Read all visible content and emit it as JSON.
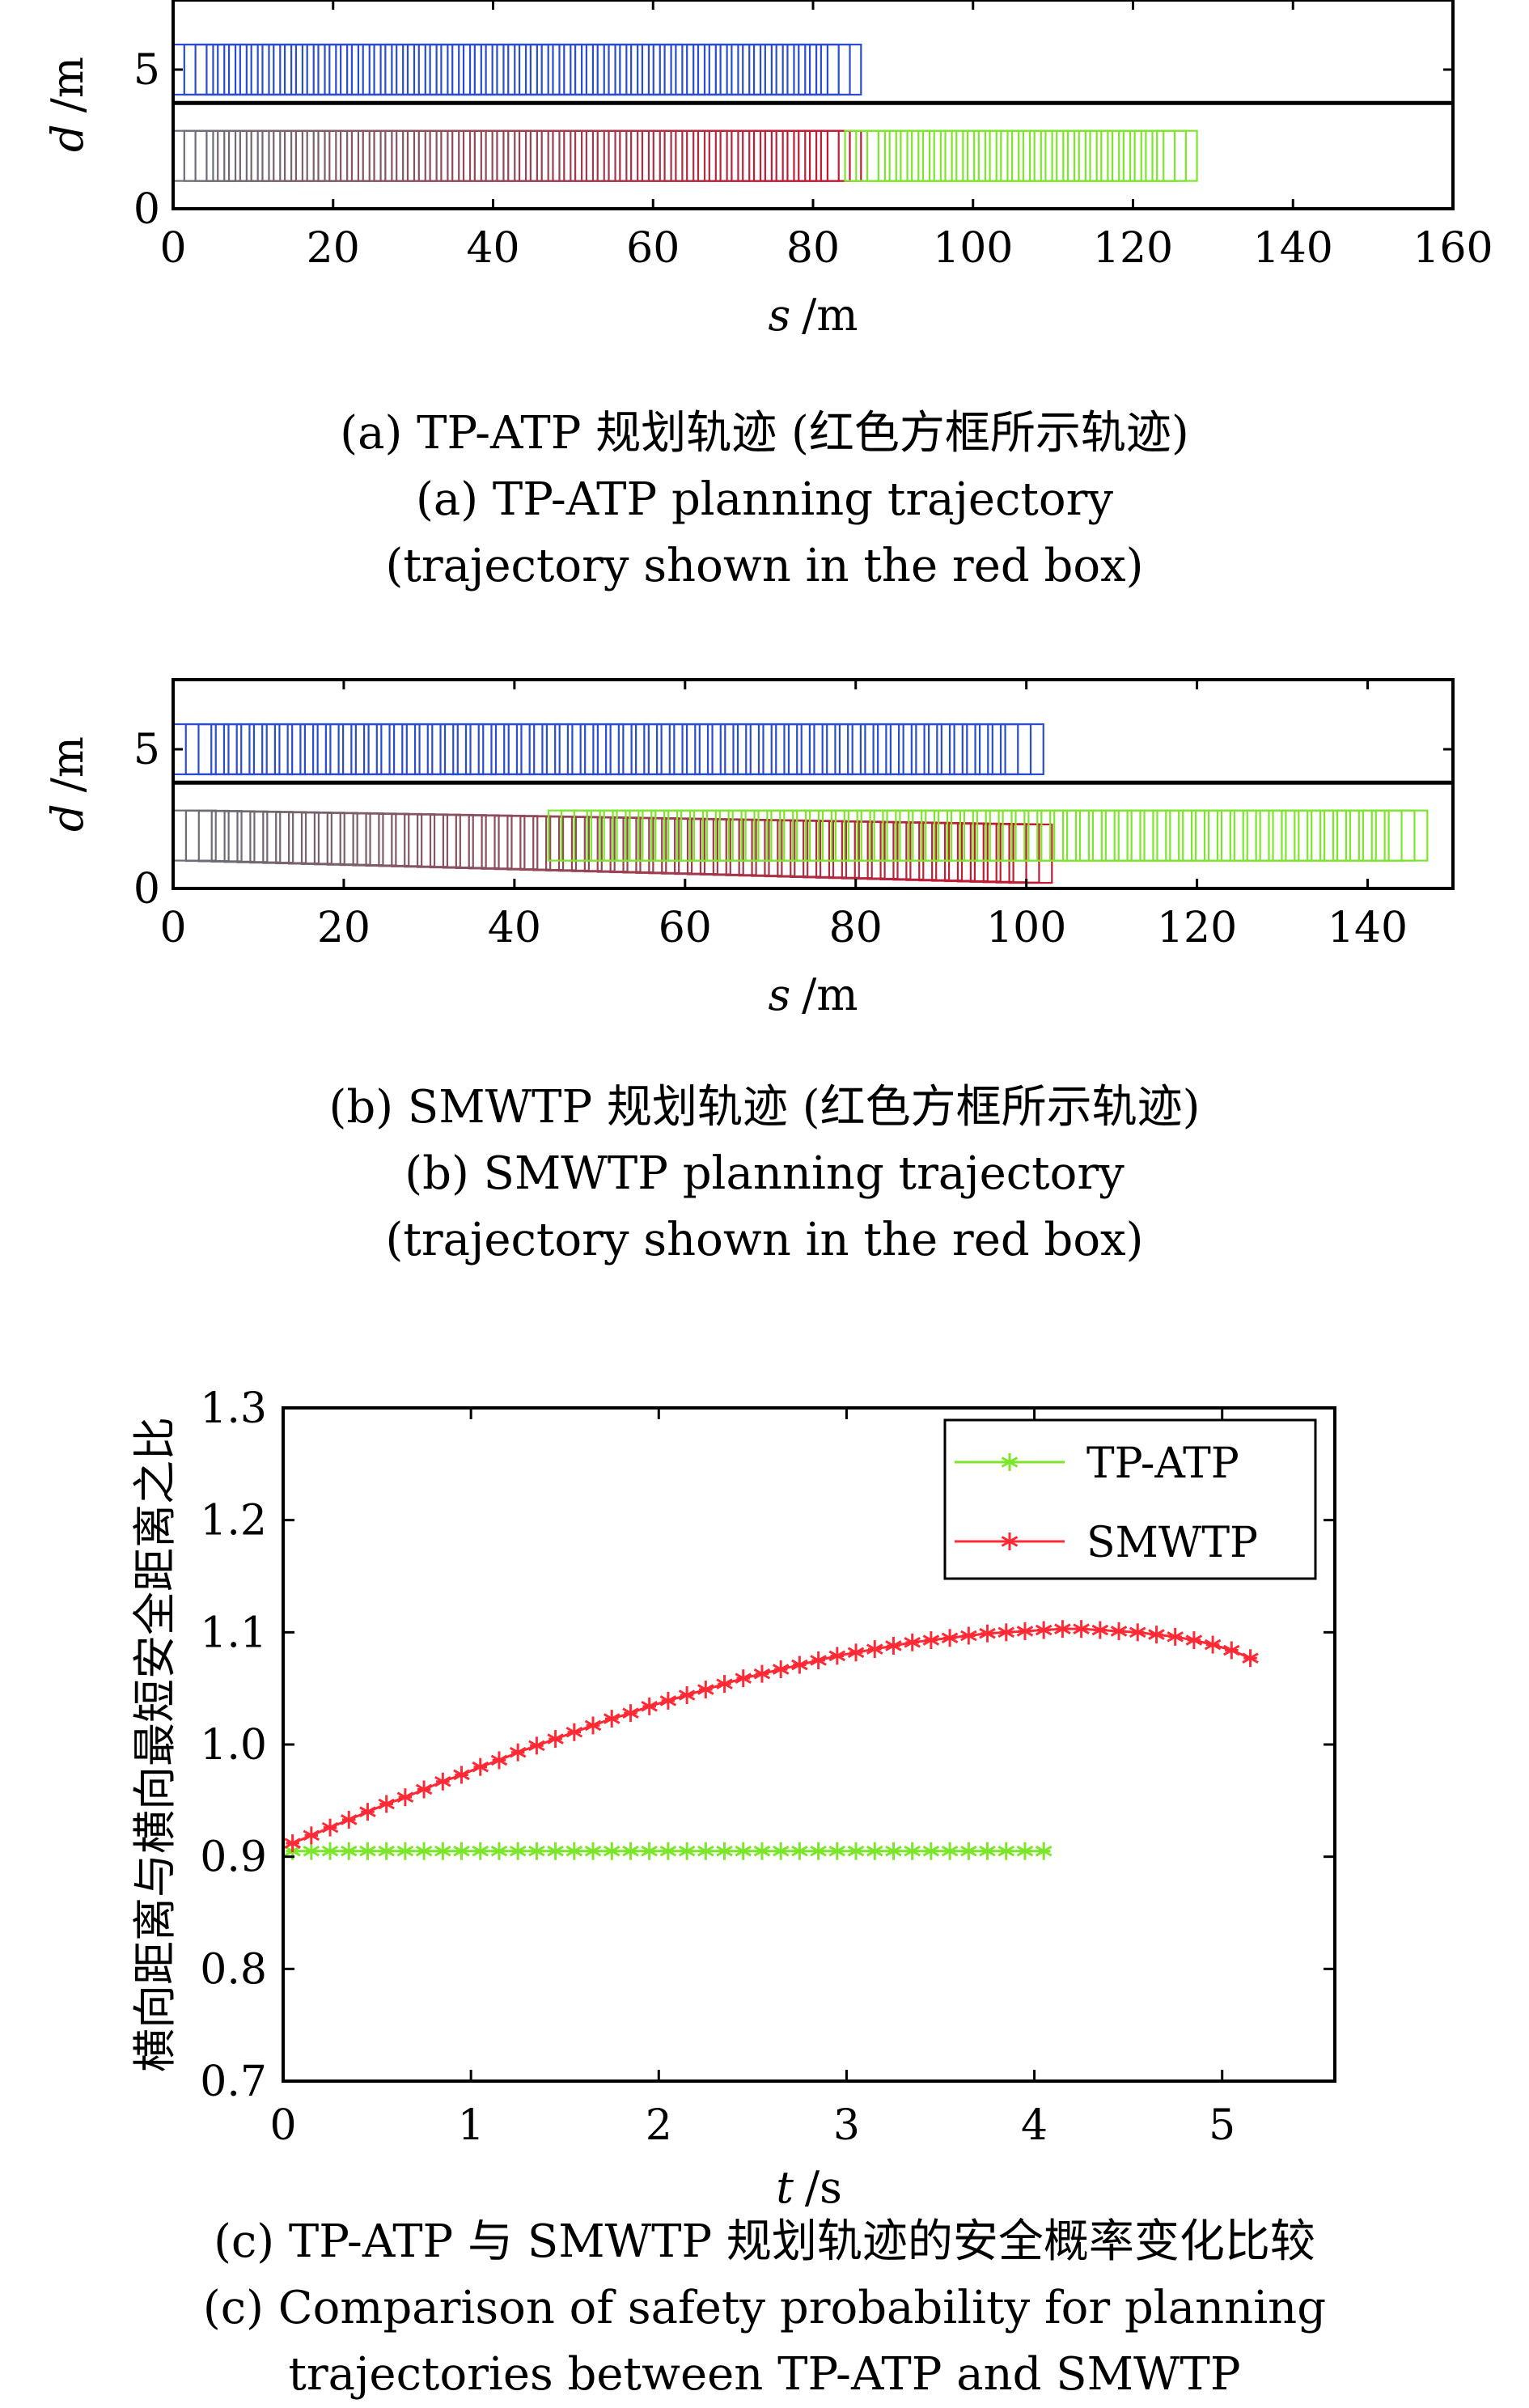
{
  "colors": {
    "lane_top": "#2a4ccf",
    "tp_atp": "#7be62a",
    "smwtp": "#ff2a35",
    "red_box": "#c21a32",
    "trail_start": "#6b6f78"
  },
  "chart_data": [
    {
      "id": "a",
      "type": "trajectory-boxes",
      "xlabel_var": "s",
      "xlabel_unit": "/m",
      "ylabel_var": "d",
      "ylabel_unit": "/m",
      "xlim": [
        0,
        160
      ],
      "ylim": [
        0,
        7.5
      ],
      "xticks": [
        0,
        20,
        40,
        60,
        80,
        100,
        120,
        140,
        160
      ],
      "yticks": [
        0,
        5
      ],
      "lane_divider_d": 3.8,
      "groups": [
        {
          "role": "upper-lane vehicle",
          "color_key": "lane_top",
          "s_start": 0,
          "s_end": 86,
          "d_low": 4.1,
          "d_high": 5.9,
          "box_length": 5,
          "spacing": 1.4
        },
        {
          "role": "planned trajectory (red box)",
          "color_key": "red_box",
          "s_start": 0,
          "s_end": 86,
          "d_low": 1.0,
          "d_high": 2.8,
          "box_length": 5,
          "spacing": 1.4
        },
        {
          "role": "lower-lane vehicle",
          "color_key": "tp_atp",
          "s_start": 84,
          "s_end": 128,
          "d_low": 1.0,
          "d_high": 2.8,
          "box_length": 5,
          "spacing": 1.4
        }
      ],
      "caption_lines": [
        "(a) TP-ATP 规划轨迹 (红色方框所示轨迹)",
        "(a) TP-ATP planning trajectory",
        "(trajectory shown in the red box)"
      ]
    },
    {
      "id": "b",
      "type": "trajectory-boxes",
      "xlabel_var": "s",
      "xlabel_unit": "/m",
      "ylabel_var": "d",
      "ylabel_unit": "/m",
      "xlim": [
        0,
        150
      ],
      "ylim": [
        0,
        7.5
      ],
      "xticks": [
        0,
        20,
        40,
        60,
        80,
        100,
        120,
        140
      ],
      "yticks": [
        0,
        5
      ],
      "lane_divider_d": 3.8,
      "groups": [
        {
          "role": "upper-lane vehicle",
          "color_key": "lane_top",
          "s_start": 0,
          "s_end": 102,
          "d_low": 4.1,
          "d_high": 5.9,
          "box_length": 5,
          "spacing": 1.5
        },
        {
          "role": "planned trajectory (red box)",
          "color_key": "red_box",
          "s_start": 0,
          "s_end": 103,
          "d_low": 1.0,
          "d_high": 2.8,
          "d_low_end": 0.2,
          "d_high_end": 2.3,
          "box_length": 5,
          "spacing": 1.5
        },
        {
          "role": "lower-lane vehicle",
          "color_key": "tp_atp",
          "s_start": 44,
          "s_end": 147,
          "d_low": 1.0,
          "d_high": 2.8,
          "box_length": 5,
          "spacing": 1.5
        }
      ],
      "caption_lines": [
        "(b) SMWTP 规划轨迹 (红色方框所示轨迹)",
        "(b) SMWTP planning trajectory",
        "(trajectory shown in the red box)"
      ]
    },
    {
      "id": "c",
      "type": "line",
      "xlabel_var": "t",
      "xlabel_unit": "/s",
      "ylabel": "横向距离与横向最短安全距离之比",
      "xlim": [
        0,
        5.6
      ],
      "ylim": [
        0.7,
        1.3
      ],
      "xticks": [
        0,
        1,
        2,
        3,
        4,
        5
      ],
      "yticks": [
        0.7,
        0.8,
        0.9,
        1.0,
        1.1,
        1.2,
        1.3
      ],
      "ytick_labels": [
        "0.7",
        "0.8",
        "0.9",
        "1.0",
        "1.1",
        "1.2",
        "1.3"
      ],
      "legend_position": "top-right",
      "series": [
        {
          "name": "TP-ATP",
          "color_key": "tp_atp",
          "marker": "*",
          "x": [
            0.05,
            0.15,
            0.25,
            0.35,
            0.45,
            0.55,
            0.65,
            0.75,
            0.85,
            0.95,
            1.05,
            1.15,
            1.25,
            1.35,
            1.45,
            1.55,
            1.65,
            1.75,
            1.85,
            1.95,
            2.05,
            2.15,
            2.25,
            2.35,
            2.45,
            2.55,
            2.65,
            2.75,
            2.85,
            2.95,
            3.05,
            3.15,
            3.25,
            3.35,
            3.45,
            3.55,
            3.65,
            3.75,
            3.85,
            3.95,
            4.05
          ],
          "y": [
            0.905,
            0.905,
            0.905,
            0.905,
            0.905,
            0.905,
            0.905,
            0.905,
            0.905,
            0.905,
            0.905,
            0.905,
            0.905,
            0.905,
            0.905,
            0.905,
            0.905,
            0.905,
            0.905,
            0.905,
            0.905,
            0.905,
            0.905,
            0.905,
            0.905,
            0.905,
            0.905,
            0.905,
            0.905,
            0.905,
            0.905,
            0.905,
            0.905,
            0.905,
            0.905,
            0.905,
            0.905,
            0.905,
            0.905,
            0.905,
            0.905
          ]
        },
        {
          "name": "SMWTP",
          "color_key": "smwtp",
          "marker": "*",
          "x": [
            0.05,
            0.15,
            0.25,
            0.35,
            0.45,
            0.55,
            0.65,
            0.75,
            0.85,
            0.95,
            1.05,
            1.15,
            1.25,
            1.35,
            1.45,
            1.55,
            1.65,
            1.75,
            1.85,
            1.95,
            2.05,
            2.15,
            2.25,
            2.35,
            2.45,
            2.55,
            2.65,
            2.75,
            2.85,
            2.95,
            3.05,
            3.15,
            3.25,
            3.35,
            3.45,
            3.55,
            3.65,
            3.75,
            3.85,
            3.95,
            4.05,
            4.15,
            4.25,
            4.35,
            4.45,
            4.55,
            4.65,
            4.75,
            4.85,
            4.95,
            5.05,
            5.15
          ],
          "y": [
            0.912,
            0.919,
            0.926,
            0.933,
            0.94,
            0.947,
            0.953,
            0.96,
            0.967,
            0.973,
            0.98,
            0.986,
            0.993,
            0.999,
            1.005,
            1.011,
            1.017,
            1.023,
            1.028,
            1.034,
            1.039,
            1.044,
            1.049,
            1.054,
            1.059,
            1.063,
            1.067,
            1.071,
            1.075,
            1.079,
            1.082,
            1.085,
            1.088,
            1.091,
            1.093,
            1.095,
            1.097,
            1.099,
            1.1,
            1.101,
            1.102,
            1.103,
            1.103,
            1.102,
            1.101,
            1.1,
            1.098,
            1.096,
            1.093,
            1.089,
            1.084,
            1.077
          ]
        }
      ],
      "caption_lines": [
        "(c) TP-ATP 与 SMWTP 规划轨迹的安全概率变化比较",
        "(c) Comparison of safety probability for planning",
        "trajectories between TP-ATP and SMWTP"
      ]
    }
  ]
}
